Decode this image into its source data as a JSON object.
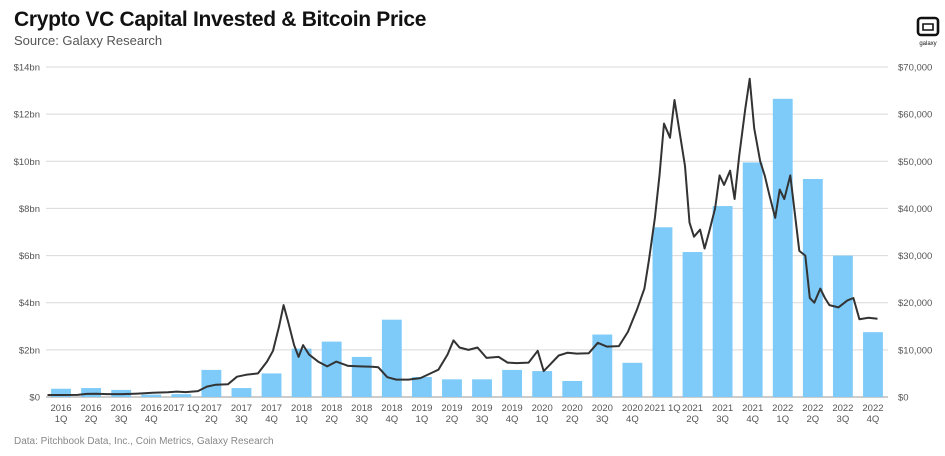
{
  "header": {
    "title": "Crypto VC Capital Invested & Bitcoin Price",
    "subtitle": "Source: Galaxy Research",
    "logo_text": "galaxy"
  },
  "footer": {
    "source": "Data: Pitchbook Data, Inc., Coin Metrics, Galaxy Research"
  },
  "colors": {
    "bar": "#7ecbf9",
    "line": "#333333",
    "grid": "#d9d9d9",
    "axis_text": "#555555"
  },
  "chart_data": {
    "type": "bar",
    "title": "Crypto VC Capital Invested & Bitcoin Price",
    "subtitle": "Source: Galaxy Research",
    "grid": true,
    "legend": "none",
    "y_left": {
      "range": [
        0,
        14
      ],
      "ticks": [
        0,
        2,
        4,
        6,
        8,
        10,
        12,
        14
      ],
      "tick_labels": [
        "$0",
        "$2bn",
        "$4bn",
        "$6bn",
        "$8bn",
        "$10bn",
        "$12bn",
        "$14bn"
      ]
    },
    "y_right": {
      "range": [
        0,
        70000
      ],
      "ticks": [
        0,
        10000,
        20000,
        30000,
        40000,
        50000,
        60000,
        70000
      ],
      "tick_labels": [
        "$0",
        "$10,000",
        "$20,000",
        "$30,000",
        "$40,000",
        "$50,000",
        "$60,000",
        "$70,000"
      ]
    },
    "categories": [
      [
        "2016",
        "1Q"
      ],
      [
        "2016",
        "2Q"
      ],
      [
        "2016",
        "3Q"
      ],
      [
        "2016",
        "4Q"
      ],
      [
        "2017 1Q",
        ""
      ],
      [
        "2017",
        "2Q"
      ],
      [
        "2017",
        "3Q"
      ],
      [
        "2017",
        "4Q"
      ],
      [
        "2018",
        "1Q"
      ],
      [
        "2018",
        "2Q"
      ],
      [
        "2018",
        "3Q"
      ],
      [
        "2018",
        "4Q"
      ],
      [
        "2019",
        "1Q"
      ],
      [
        "2019",
        "2Q"
      ],
      [
        "2019",
        "3Q"
      ],
      [
        "2019",
        "4Q"
      ],
      [
        "2020",
        "1Q"
      ],
      [
        "2020",
        "2Q"
      ],
      [
        "2020",
        "3Q"
      ],
      [
        "2020",
        "4Q"
      ],
      [
        "2021 1Q",
        ""
      ],
      [
        "2021",
        "2Q"
      ],
      [
        "2021",
        "3Q"
      ],
      [
        "2021",
        "4Q"
      ],
      [
        "2022",
        "1Q"
      ],
      [
        "2022",
        "2Q"
      ],
      [
        "2022",
        "3Q"
      ],
      [
        "2022",
        "4Q"
      ]
    ],
    "series": [
      {
        "kind": "bar",
        "axis": "left",
        "values": [
          0.35,
          0.38,
          0.3,
          0.1,
          0.12,
          1.15,
          0.38,
          1.0,
          2.05,
          2.35,
          1.7,
          3.28,
          0.85,
          0.75,
          0.75,
          1.15,
          1.1,
          0.68,
          2.65,
          1.45,
          7.2,
          6.15,
          8.1,
          9.95,
          12.65,
          9.25,
          6.0,
          2.75
        ]
      },
      {
        "kind": "line",
        "axis": "right",
        "note": "Bitcoin price, approximate values across the same quarterly span (x = fractional quarter index)",
        "points": [
          [
            0.0,
            430
          ],
          [
            0.5,
            420
          ],
          [
            1.0,
            450
          ],
          [
            1.3,
            650
          ],
          [
            1.6,
            700
          ],
          [
            2.0,
            620
          ],
          [
            2.5,
            610
          ],
          [
            3.0,
            720
          ],
          [
            3.5,
            900
          ],
          [
            4.0,
            1000
          ],
          [
            4.3,
            1150
          ],
          [
            4.6,
            1050
          ],
          [
            5.0,
            1250
          ],
          [
            5.3,
            2200
          ],
          [
            5.6,
            2600
          ],
          [
            6.0,
            2700
          ],
          [
            6.3,
            4300
          ],
          [
            6.6,
            4700
          ],
          [
            7.0,
            5000
          ],
          [
            7.3,
            7500
          ],
          [
            7.5,
            9800
          ],
          [
            7.7,
            15000
          ],
          [
            7.85,
            19500
          ],
          [
            8.0,
            16000
          ],
          [
            8.2,
            11000
          ],
          [
            8.35,
            8500
          ],
          [
            8.5,
            11000
          ],
          [
            8.7,
            9000
          ],
          [
            9.0,
            7500
          ],
          [
            9.3,
            6500
          ],
          [
            9.6,
            7500
          ],
          [
            10.0,
            6600
          ],
          [
            10.4,
            6500
          ],
          [
            10.8,
            6400
          ],
          [
            11.0,
            6300
          ],
          [
            11.3,
            4200
          ],
          [
            11.6,
            3700
          ],
          [
            12.0,
            3700
          ],
          [
            12.4,
            4000
          ],
          [
            12.8,
            5200
          ],
          [
            13.0,
            5800
          ],
          [
            13.3,
            9000
          ],
          [
            13.5,
            12000
          ],
          [
            13.7,
            10500
          ],
          [
            14.0,
            10000
          ],
          [
            14.3,
            10500
          ],
          [
            14.6,
            8300
          ],
          [
            15.0,
            8500
          ],
          [
            15.3,
            7300
          ],
          [
            15.6,
            7200
          ],
          [
            16.0,
            7300
          ],
          [
            16.3,
            9800
          ],
          [
            16.5,
            5500
          ],
          [
            16.7,
            6800
          ],
          [
            17.0,
            8800
          ],
          [
            17.3,
            9400
          ],
          [
            17.6,
            9200
          ],
          [
            18.0,
            9300
          ],
          [
            18.3,
            11500
          ],
          [
            18.6,
            10700
          ],
          [
            19.0,
            10800
          ],
          [
            19.3,
            13800
          ],
          [
            19.6,
            18500
          ],
          [
            19.85,
            23000
          ],
          [
            20.0,
            29000
          ],
          [
            20.2,
            38000
          ],
          [
            20.35,
            47000
          ],
          [
            20.5,
            58000
          ],
          [
            20.7,
            55000
          ],
          [
            20.85,
            63000
          ],
          [
            21.0,
            57000
          ],
          [
            21.2,
            49000
          ],
          [
            21.35,
            37000
          ],
          [
            21.5,
            34000
          ],
          [
            21.7,
            35500
          ],
          [
            21.85,
            31500
          ],
          [
            22.0,
            35000
          ],
          [
            22.2,
            40000
          ],
          [
            22.35,
            47000
          ],
          [
            22.5,
            45000
          ],
          [
            22.7,
            48000
          ],
          [
            22.85,
            42000
          ],
          [
            23.0,
            51000
          ],
          [
            23.2,
            61000
          ],
          [
            23.35,
            67500
          ],
          [
            23.5,
            57000
          ],
          [
            23.7,
            50000
          ],
          [
            23.85,
            47000
          ],
          [
            24.0,
            43000
          ],
          [
            24.2,
            38000
          ],
          [
            24.35,
            44000
          ],
          [
            24.5,
            42000
          ],
          [
            24.7,
            47000
          ],
          [
            24.85,
            39000
          ],
          [
            25.0,
            31000
          ],
          [
            25.2,
            30000
          ],
          [
            25.35,
            21000
          ],
          [
            25.5,
            20000
          ],
          [
            25.7,
            23000
          ],
          [
            25.85,
            21000
          ],
          [
            26.0,
            19500
          ],
          [
            26.3,
            19000
          ],
          [
            26.6,
            20500
          ],
          [
            26.8,
            21000
          ],
          [
            27.0,
            16500
          ],
          [
            27.3,
            16800
          ],
          [
            27.6,
            16600
          ]
        ]
      }
    ]
  }
}
